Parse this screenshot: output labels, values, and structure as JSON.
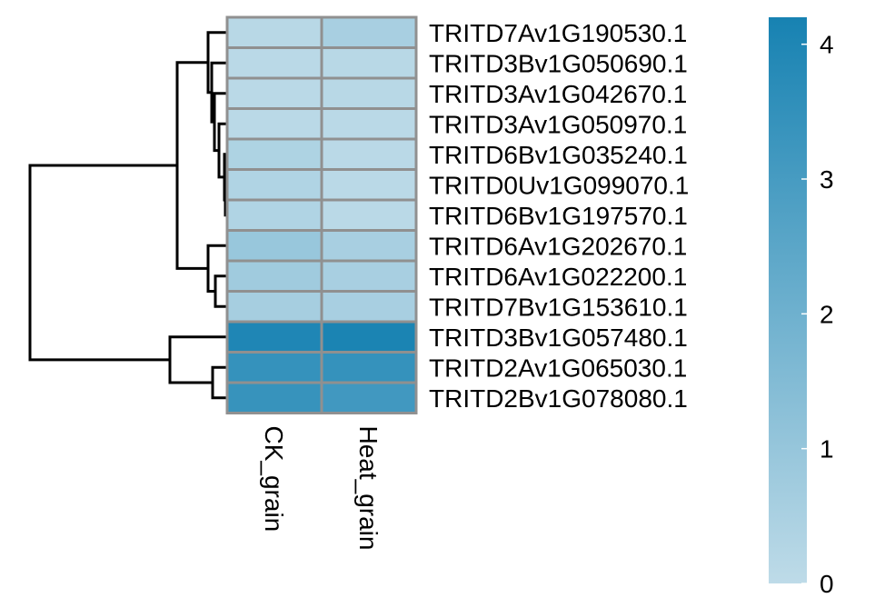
{
  "chart_data": {
    "type": "heatmap",
    "title": "",
    "rows": [
      "TRITD7Av1G190530.1",
      "TRITD3Bv1G050690.1",
      "TRITD3Av1G042670.1",
      "TRITD3Av1G050970.1",
      "TRITD6Bv1G035240.1",
      "TRITD0Uv1G099070.1",
      "TRITD6Bv1G197570.1",
      "TRITD6Av1G202670.1",
      "TRITD6Av1G022200.1",
      "TRITD7Bv1G153610.1",
      "TRITD3Bv1G057480.1",
      "TRITD2Av1G065030.1",
      "TRITD2Bv1G078080.1"
    ],
    "columns": [
      "CK_grain",
      "Heat_grain"
    ],
    "values": [
      [
        0.15,
        0.55
      ],
      [
        0.1,
        0.15
      ],
      [
        0.1,
        0.15
      ],
      [
        0.1,
        0.1
      ],
      [
        0.4,
        0.1
      ],
      [
        0.35,
        0.1
      ],
      [
        0.35,
        0.1
      ],
      [
        0.95,
        0.55
      ],
      [
        0.75,
        0.55
      ],
      [
        0.6,
        0.55
      ],
      [
        4.0,
        4.1
      ],
      [
        3.45,
        3.45
      ],
      [
        3.4,
        3.15
      ]
    ],
    "color_scale": {
      "min": 0,
      "max": 4.2,
      "low_color": "#bedbe8",
      "high_color": "#1782b2",
      "ticks": [
        0,
        1,
        2,
        3,
        4
      ]
    },
    "row_dendrogram": true,
    "legend_position": "right"
  }
}
